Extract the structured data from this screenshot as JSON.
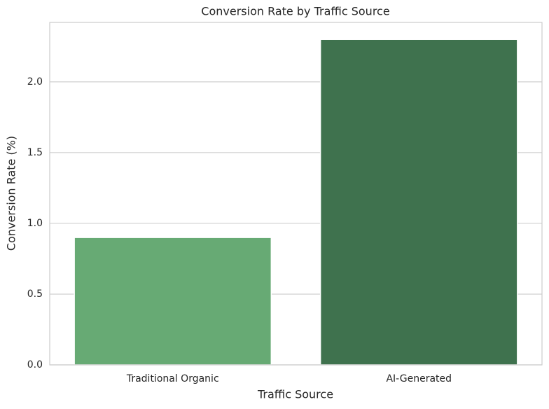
{
  "chart_data": {
    "type": "bar",
    "title": "Conversion Rate by Traffic Source",
    "x_label": "Traffic Source",
    "y_label": "Conversion Rate (%)",
    "categories": [
      "Traditional Organic",
      "AI-Generated"
    ],
    "values": [
      0.9,
      2.3
    ],
    "colors": [
      "#67aa74",
      "#3f724e"
    ],
    "ylim": [
      0,
      2.42
    ],
    "yticks": [
      {
        "value": 0,
        "label": "0.0"
      },
      0.5,
      {
        "value": 1,
        "label": "1.0"
      },
      1.5,
      {
        "value": 2,
        "label": "2.0"
      }
    ],
    "grid": true
  }
}
